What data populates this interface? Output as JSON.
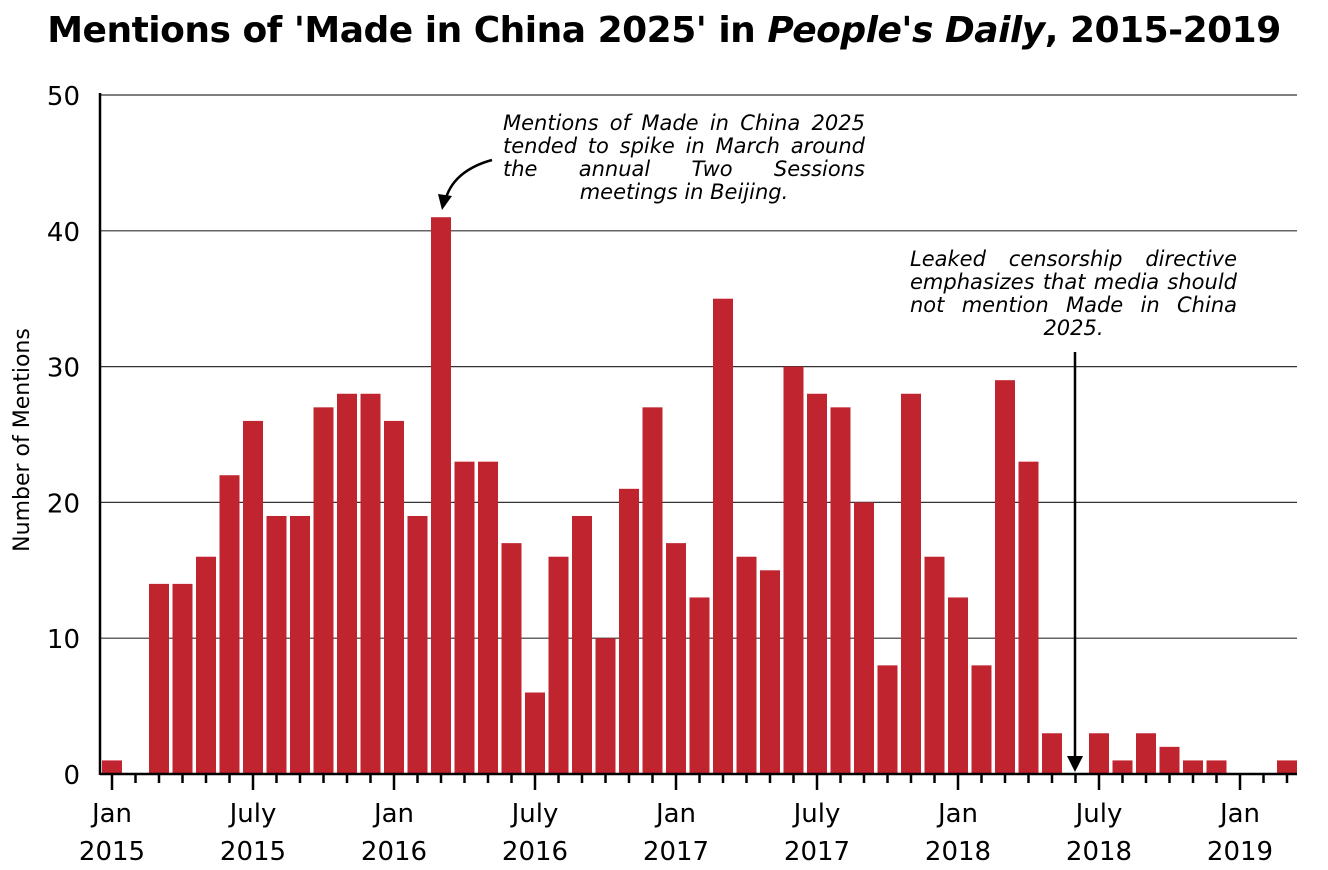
{
  "title": {
    "prefix": "Mentions of 'Made in China 2025' in ",
    "italic": "People's Daily",
    "suffix": ", 2015-2019"
  },
  "colors": {
    "bar": "#c0242e",
    "grid": "#333333",
    "axis": "#000000"
  },
  "annotations": [
    {
      "text": "Mentions of Made in China 2025 tended to spike in March around the annual Two Sessions meetings in Beijing.",
      "points_to": "2016-03"
    },
    {
      "text": "Leaked censorship directive emphasizes that media should not mention Made in China 2025.",
      "points_to": "2018-06"
    }
  ],
  "chart_data": {
    "type": "bar",
    "title": "Mentions of 'Made in China 2025' in People's Daily, 2015-2019",
    "xlabel": "",
    "ylabel": "Number of Mentions",
    "ylim": [
      0,
      50
    ],
    "yticks": [
      0,
      10,
      20,
      30,
      40,
      50
    ],
    "grid": true,
    "categories": [
      "2015-01",
      "2015-02",
      "2015-03",
      "2015-04",
      "2015-05",
      "2015-06",
      "2015-07",
      "2015-08",
      "2015-09",
      "2015-10",
      "2015-11",
      "2015-12",
      "2016-01",
      "2016-02",
      "2016-03",
      "2016-04",
      "2016-05",
      "2016-06",
      "2016-07",
      "2016-08",
      "2016-09",
      "2016-10",
      "2016-11",
      "2016-12",
      "2017-01",
      "2017-02",
      "2017-03",
      "2017-04",
      "2017-05",
      "2017-06",
      "2017-07",
      "2017-08",
      "2017-09",
      "2017-10",
      "2017-11",
      "2017-12",
      "2018-01",
      "2018-02",
      "2018-03",
      "2018-04",
      "2018-05",
      "2018-06",
      "2018-07",
      "2018-08",
      "2018-09",
      "2018-10",
      "2018-11",
      "2018-12",
      "2019-01",
      "2019-02",
      "2019-03"
    ],
    "values": [
      1,
      0,
      14,
      14,
      16,
      22,
      26,
      19,
      19,
      27,
      28,
      28,
      26,
      19,
      41,
      23,
      23,
      17,
      6,
      16,
      19,
      10,
      21,
      27,
      17,
      13,
      35,
      16,
      15,
      30,
      28,
      27,
      20,
      8,
      28,
      16,
      13,
      8,
      29,
      23,
      3,
      0,
      3,
      1,
      3,
      2,
      1,
      1,
      0,
      0,
      1
    ],
    "xtick_labels": [
      {
        "index": 0,
        "month": "Jan",
        "year": "2015"
      },
      {
        "index": 6,
        "month": "July",
        "year": "2015"
      },
      {
        "index": 12,
        "month": "Jan",
        "year": "2016"
      },
      {
        "index": 18,
        "month": "July",
        "year": "2016"
      },
      {
        "index": 24,
        "month": "Jan",
        "year": "2017"
      },
      {
        "index": 30,
        "month": "July",
        "year": "2017"
      },
      {
        "index": 36,
        "month": "Jan",
        "year": "2018"
      },
      {
        "index": 42,
        "month": "July",
        "year": "2018"
      },
      {
        "index": 48,
        "month": "Jan",
        "year": "2019"
      }
    ]
  }
}
